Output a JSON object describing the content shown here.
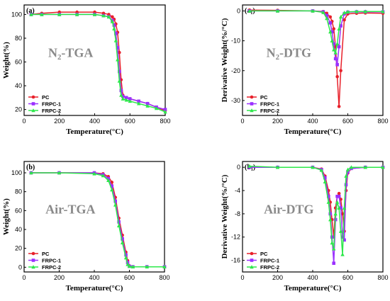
{
  "series_style": [
    {
      "name": "PC",
      "color": "#e8202a",
      "marker": "circle"
    },
    {
      "name": "FRPC-1",
      "color": "#9b30ff",
      "marker": "square"
    },
    {
      "name": "FRPC-2",
      "color": "#2de84a",
      "marker": "triangle"
    }
  ],
  "chart_data": [
    {
      "panel": "(a)",
      "type": "line",
      "annotation": "N₂-TGA",
      "xlabel": "Temperature(°C)",
      "ylabel": "Weight(%)",
      "xlim": [
        0,
        800
      ],
      "ylim": [
        15,
        108
      ],
      "xticks": [
        0,
        200,
        400,
        600,
        800
      ],
      "yticks": [
        20,
        40,
        60,
        80,
        100
      ],
      "legend": "bottom-left",
      "x": [
        40,
        100,
        200,
        300,
        400,
        450,
        480,
        500,
        510,
        520,
        530,
        540,
        550,
        560,
        580,
        600,
        650,
        700,
        750,
        800
      ],
      "series": [
        {
          "name": "PC",
          "values": [
            100,
            101,
            102,
            102,
            102,
            101,
            100,
            98,
            96,
            92,
            85,
            68,
            45,
            32,
            30,
            29,
            27,
            25,
            22,
            19
          ]
        },
        {
          "name": "FRPC-1",
          "values": [
            100,
            100,
            100,
            100,
            100,
            99,
            98,
            95,
            91,
            84,
            72,
            52,
            36,
            31,
            30,
            29,
            27,
            25,
            22,
            20
          ]
        },
        {
          "name": "FRPC-2",
          "values": [
            100,
            100,
            100,
            100,
            100,
            99,
            98,
            94,
            88,
            78,
            62,
            44,
            32,
            29,
            28,
            27,
            25,
            23,
            21,
            18
          ]
        }
      ]
    },
    {
      "panel": "(a₁)",
      "type": "line",
      "annotation": "N₂-DTG",
      "xlabel": "Temperature(°C)",
      "ylabel": "Derivative Weight(%/°C)",
      "xlim": [
        0,
        800
      ],
      "ylim": [
        -35,
        2
      ],
      "xticks": [
        0,
        200,
        400,
        600,
        800
      ],
      "yticks": [
        0,
        -10,
        -20,
        -30
      ],
      "legend": "bottom-left",
      "x": [
        40,
        200,
        400,
        460,
        480,
        500,
        510,
        520,
        530,
        540,
        550,
        560,
        580,
        600,
        650,
        700,
        800
      ],
      "series": [
        {
          "name": "PC",
          "values": [
            0.3,
            0.2,
            0,
            -0.2,
            -0.8,
            -2,
            -3.5,
            -6,
            -12,
            -22,
            -32,
            -20,
            -3,
            -1,
            -0.8,
            -0.7,
            -0.8
          ]
        },
        {
          "name": "FRPC-1",
          "values": [
            0,
            0,
            0,
            -0.3,
            -1.5,
            -4,
            -7,
            -11,
            -16,
            -18,
            -12,
            -5,
            -1,
            -0.4,
            -0.3,
            -0.3,
            -0.3
          ]
        },
        {
          "name": "FRPC-2",
          "values": [
            0,
            0,
            0,
            -0.5,
            -2.5,
            -7,
            -10,
            -13,
            -14,
            -11,
            -6,
            -2,
            -0.6,
            -0.3,
            -0.2,
            -0.2,
            -0.2
          ]
        }
      ]
    },
    {
      "panel": "(b)",
      "type": "line",
      "annotation": "Air-TGA",
      "xlabel": "Temperature(°C)",
      "ylabel": "Weight(%)",
      "xlim": [
        0,
        800
      ],
      "ylim": [
        -5,
        112
      ],
      "xticks": [
        0,
        200,
        400,
        600,
        800
      ],
      "yticks": [
        0,
        20,
        40,
        60,
        80,
        100
      ],
      "legend": "bottom-left",
      "x": [
        40,
        200,
        400,
        450,
        480,
        500,
        520,
        540,
        560,
        580,
        590,
        600,
        620,
        700,
        800
      ],
      "series": [
        {
          "name": "PC",
          "values": [
            100,
            100,
            100,
            99,
            96,
            90,
            74,
            52,
            34,
            16,
            7,
            1.5,
            0.5,
            0.5,
            0.5
          ]
        },
        {
          "name": "FRPC-1",
          "values": [
            100,
            100,
            100,
            98,
            94,
            86,
            70,
            48,
            30,
            13,
            5,
            1,
            0.5,
            0.5,
            0.5
          ]
        },
        {
          "name": "FRPC-2",
          "values": [
            100,
            100,
            99,
            97,
            92,
            82,
            66,
            44,
            26,
            10,
            3,
            1,
            0.5,
            0.5,
            0.5
          ]
        }
      ]
    },
    {
      "panel": "(b₁)",
      "type": "line",
      "annotation": "Air-DTG",
      "xlabel": "Temperature(°C)",
      "ylabel": "Derivative Weight(%/°C)",
      "xlim": [
        0,
        800
      ],
      "ylim": [
        -18,
        1
      ],
      "xticks": [
        0,
        200,
        400,
        600,
        800
      ],
      "yticks": [
        0,
        -4,
        -8,
        -12,
        -16
      ],
      "legend": "bottom-left",
      "x": [
        40,
        200,
        400,
        450,
        470,
        490,
        500,
        510,
        520,
        530,
        540,
        550,
        560,
        570,
        580,
        590,
        600,
        620,
        700,
        800
      ],
      "series": [
        {
          "name": "PC",
          "values": [
            0,
            0,
            0,
            -0.3,
            -1.5,
            -4,
            -6,
            -9,
            -12,
            -7,
            -5,
            -4.5,
            -5.5,
            -8,
            -11,
            -4,
            -1,
            -0.2,
            0,
            0
          ]
        },
        {
          "name": "FRPC-1",
          "values": [
            0,
            0,
            0,
            -0.4,
            -1.8,
            -5,
            -8,
            -12,
            -16.5,
            -9,
            -5,
            -5,
            -7,
            -12,
            -12.5,
            -3,
            -0.8,
            -0.2,
            0,
            0
          ]
        },
        {
          "name": "FRPC-2",
          "values": [
            0.2,
            0,
            0,
            -0.5,
            -2.5,
            -6,
            -9,
            -13,
            -14,
            -8,
            -6,
            -7,
            -11,
            -15,
            -7,
            -1.5,
            -0.4,
            0,
            0,
            0
          ]
        }
      ]
    }
  ]
}
